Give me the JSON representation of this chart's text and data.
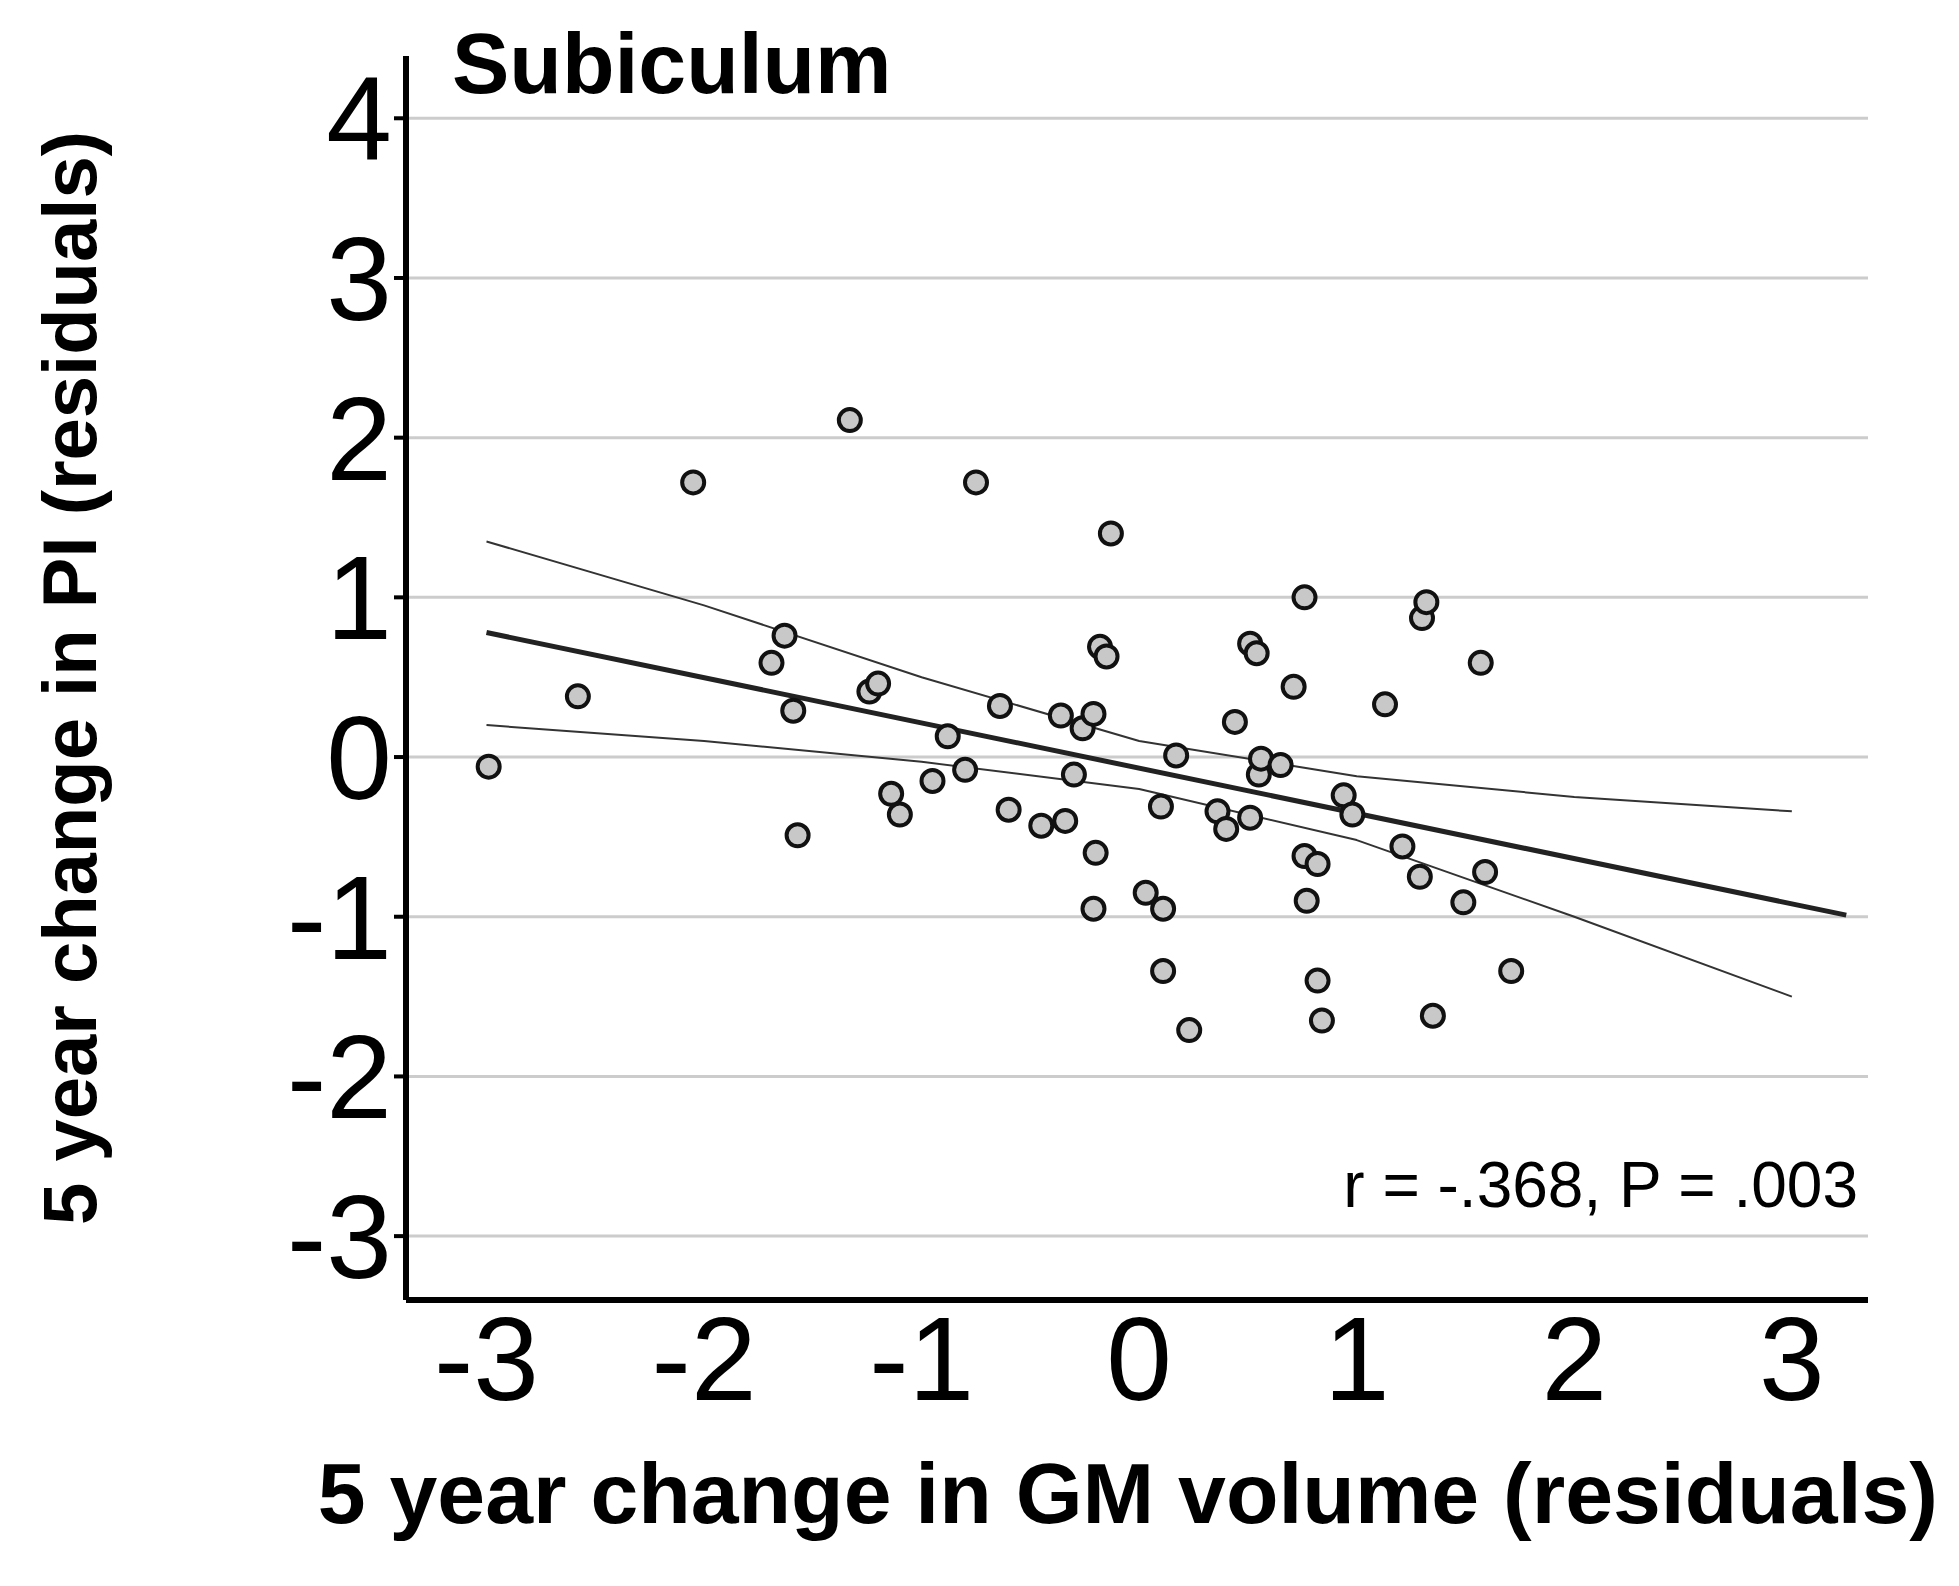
{
  "chart_data": {
    "type": "scatter",
    "title": "Subiculum",
    "xlabel": "5 year change in GM volume (residuals)",
    "ylabel": "5 year change in PI (residuals)",
    "annotations": [
      "r = -.368, P = .003"
    ],
    "xlim": [
      -3.37,
      3.35
    ],
    "xticks": [
      -3,
      -2,
      -1,
      0,
      1,
      2,
      3
    ],
    "ylim": [
      -3.4,
      4.39
    ],
    "yticks": [
      -3,
      -2,
      -1,
      0,
      1,
      2,
      3,
      4
    ],
    "grid": "y",
    "legend": false,
    "series": [
      {
        "marker": "circle",
        "color": "#c8c8c8",
        "x": [
          -2.99,
          -2.58,
          -2.05,
          -1.69,
          -1.63,
          -1.59,
          -1.57,
          -1.33,
          -1.24,
          -1.2,
          -1.14,
          -1.1,
          -0.95,
          -0.88,
          -0.8,
          -0.75,
          -0.64,
          -0.6,
          -0.45,
          -0.36,
          -0.34,
          -0.3,
          -0.26,
          -0.21,
          -0.2,
          -0.21,
          -0.18,
          -0.15,
          -0.13,
          0.03,
          0.1,
          0.11,
          0.11,
          0.17,
          0.23,
          0.36,
          0.4,
          0.44,
          0.51,
          0.51,
          0.54,
          0.55,
          0.56,
          0.65,
          0.71,
          0.76,
          0.76,
          0.77,
          0.82,
          0.82,
          0.84,
          0.94,
          0.98,
          1.13,
          1.21,
          1.29,
          1.3,
          1.32,
          1.35,
          1.49,
          1.57,
          1.59,
          1.71
        ],
        "values": [
          -0.06,
          0.38,
          1.72,
          0.59,
          0.76,
          0.29,
          -0.49,
          2.11,
          0.41,
          0.46,
          -0.23,
          -0.36,
          -0.15,
          0.13,
          -0.08,
          1.72,
          0.32,
          -0.33,
          -0.43,
          0.26,
          -0.4,
          -0.11,
          0.18,
          0.27,
          -0.6,
          -0.95,
          0.69,
          0.63,
          1.4,
          -0.85,
          -0.31,
          -0.95,
          -1.34,
          0.01,
          -1.71,
          -0.34,
          -0.45,
          0.22,
          -0.38,
          0.71,
          0.65,
          -0.11,
          -0.01,
          -0.05,
          0.44,
          1.0,
          -0.62,
          -0.9,
          -0.67,
          -1.4,
          -1.65,
          -0.24,
          -0.36,
          0.33,
          -0.56,
          -0.75,
          0.87,
          0.97,
          -1.62,
          -0.91,
          0.59,
          -0.72,
          -1.34
        ]
      },
      {
        "type": "line",
        "color": "#222222",
        "x": [
          -3,
          3.25
        ],
        "values": [
          0.78,
          -0.99
        ]
      },
      {
        "type": "line",
        "color": "#333333",
        "x": [
          -3,
          -2,
          -1,
          0,
          1,
          2,
          3
        ],
        "values": [
          1.35,
          0.95,
          0.5,
          0.1,
          -0.12,
          -0.25,
          -0.34
        ]
      },
      {
        "type": "line",
        "color": "#333333",
        "x": [
          -3,
          -2,
          -1,
          0,
          1,
          2,
          3
        ],
        "values": [
          0.2,
          0.1,
          -0.03,
          -0.2,
          -0.52,
          -1.0,
          -1.5
        ]
      }
    ]
  }
}
